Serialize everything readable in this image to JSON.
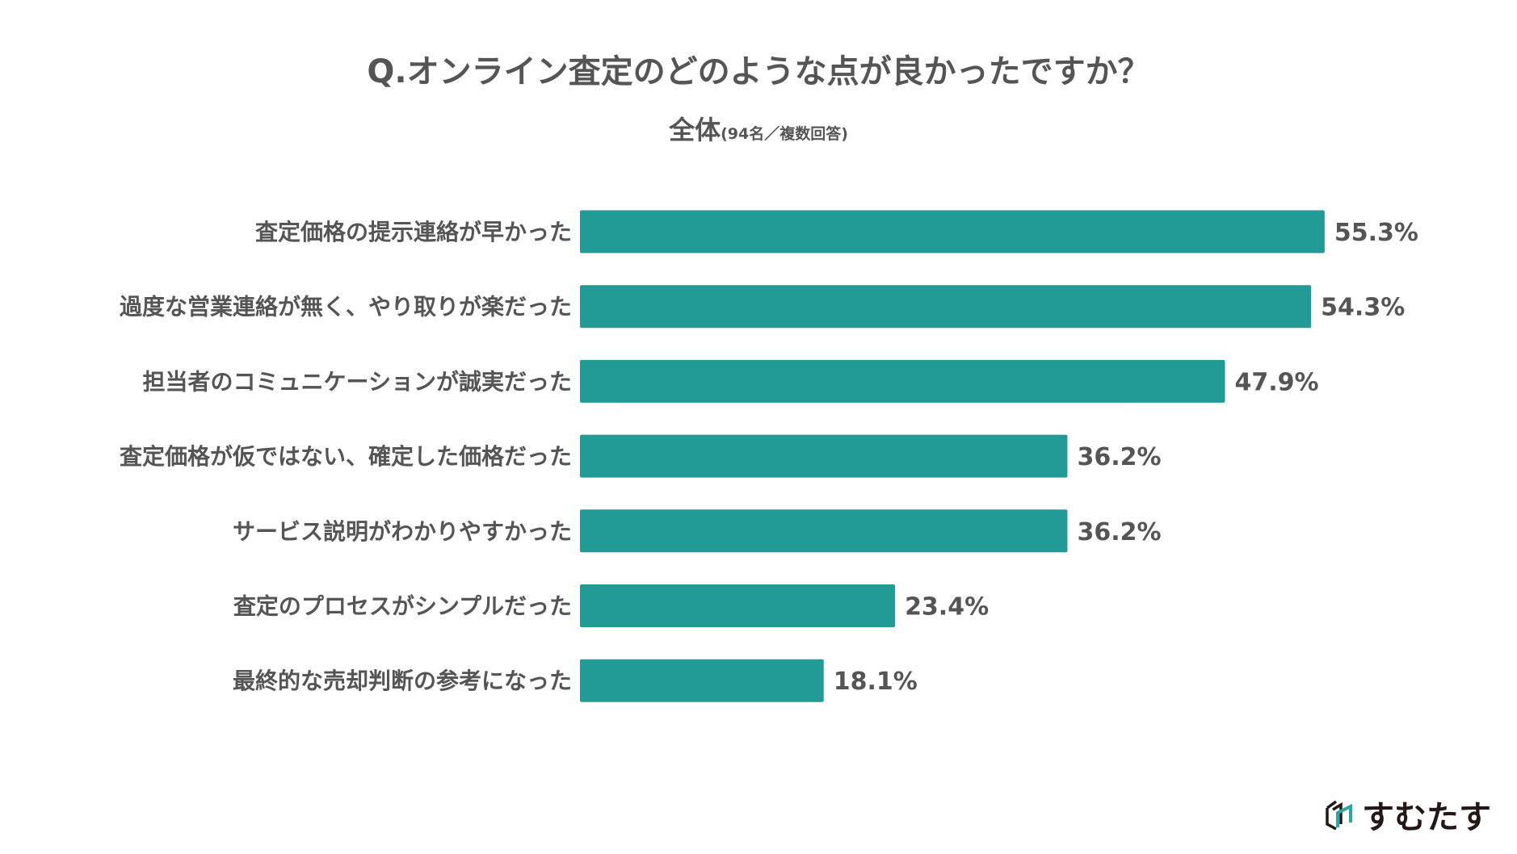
{
  "chart_data": {
    "type": "bar",
    "orientation": "horizontal",
    "title": "Q.オンライン査定のどのような点が良かったですか？",
    "subtitle": "全体",
    "subtitle_note": "(94名／複数回答)",
    "categories": [
      "査定価格の提示連絡が早かった",
      "過度な営業連絡が無く、やり取りが楽だった",
      "担当者のコミュニケーションが誠実だった",
      "査定価格が仮ではない、確定した価格だった",
      "サービス説明がわかりやすかった",
      "査定のプロセスがシンプルだった",
      "最終的な売却判断の参考になった"
    ],
    "values": [
      55.3,
      54.3,
      47.9,
      36.2,
      36.2,
      23.4,
      18.1
    ],
    "value_labels": [
      "55.3%",
      "54.3%",
      "47.9%",
      "36.2%",
      "36.2%",
      "23.4%",
      "18.1%"
    ],
    "unit": "%",
    "xlim": [
      0,
      100
    ],
    "grid": false,
    "xlabel": "",
    "ylabel": "",
    "bar_color": "#229a96"
  },
  "logo": {
    "text": "すむたす",
    "accent": "#2aa7a0",
    "dark": "#231815"
  }
}
